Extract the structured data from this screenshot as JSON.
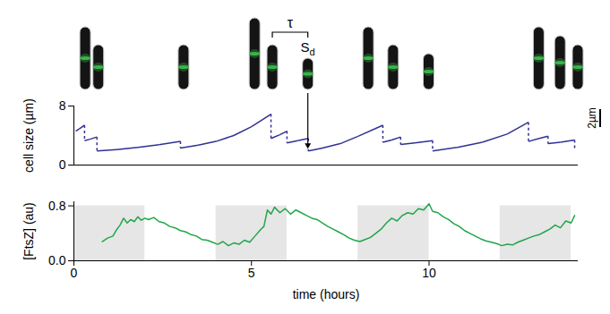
{
  "chart_data": [
    {
      "type": "line",
      "y_label": "cell size (µm)",
      "xlim": [
        0,
        14.2
      ],
      "ylim": [
        0,
        8
      ],
      "yticks": [
        0,
        8
      ],
      "tick_labels": "y",
      "color": "#2e3192",
      "x": [
        0.05,
        0.15,
        0.3,
        0.3,
        0.45,
        0.65,
        0.65,
        1.2,
        1.8,
        2.4,
        3.0,
        3.0,
        3.5,
        4.0,
        4.5,
        5.0,
        5.55,
        5.55,
        5.8,
        6.0,
        6.0,
        6.3,
        6.6,
        6.6,
        7.0,
        7.5,
        8.0,
        8.7,
        8.7,
        8.95,
        9.2,
        9.2,
        9.6,
        10.1,
        10.1,
        10.8,
        11.5,
        12.2,
        12.8,
        12.8,
        13.1,
        13.35,
        13.35,
        13.7,
        14.1,
        14.1
      ],
      "values": [
        4.6,
        4.9,
        5.4,
        3.3,
        3.5,
        3.8,
        1.9,
        2.1,
        2.4,
        2.75,
        3.2,
        2.3,
        2.7,
        3.2,
        4.0,
        5.2,
        6.9,
        3.6,
        4.1,
        4.6,
        3.0,
        3.3,
        3.6,
        1.9,
        2.3,
        2.9,
        3.9,
        5.4,
        3.1,
        3.4,
        3.8,
        2.8,
        3.0,
        3.3,
        1.9,
        2.4,
        3.1,
        4.2,
        5.8,
        3.2,
        3.6,
        3.9,
        2.9,
        3.1,
        3.4,
        2.0
      ],
      "annotations": [
        {
          "text": "τ",
          "x": [
            5.6,
            6.6
          ]
        },
        {
          "text": "S",
          "subscript": "d",
          "x": 6.6
        }
      ],
      "cell_images": {
        "x": [
          0.33,
          0.7,
          3.1,
          5.1,
          5.6,
          6.6,
          8.3,
          9.0,
          10.0,
          13.1,
          13.7,
          14.2
        ],
        "lengths": [
          7,
          5,
          5,
          8,
          5,
          3.5,
          7,
          5,
          4,
          7,
          6,
          5
        ],
        "color": "#39b54a"
      },
      "scale_bar": {
        "label": "2µm",
        "value": 2
      }
    },
    {
      "type": "line",
      "x_label": "time (hours)",
      "y_label": "[FtsZ] (au)",
      "xlim": [
        0,
        14.2
      ],
      "ylim": [
        0,
        0.86
      ],
      "xticks": [
        0,
        5,
        10
      ],
      "yticks": [
        0,
        0.8
      ],
      "color": "#1fa64a",
      "x": [
        0.8,
        0.95,
        1.1,
        1.2,
        1.3,
        1.4,
        1.5,
        1.6,
        1.7,
        1.8,
        1.9,
        2.0,
        2.1,
        2.25,
        2.4,
        2.55,
        2.7,
        2.85,
        3.0,
        3.15,
        3.3,
        3.45,
        3.6,
        3.75,
        3.9,
        4.05,
        4.2,
        4.35,
        4.5,
        4.65,
        4.8,
        4.95,
        5.1,
        5.25,
        5.35,
        5.45,
        5.55,
        5.65,
        5.8,
        5.95,
        6.1,
        6.25,
        6.4,
        6.55,
        6.7,
        6.85,
        7.0,
        7.15,
        7.3,
        7.45,
        7.6,
        7.75,
        7.9,
        8.05,
        8.2,
        8.35,
        8.5,
        8.65,
        8.8,
        8.95,
        9.1,
        9.25,
        9.4,
        9.55,
        9.7,
        9.85,
        10.0,
        10.1,
        10.25,
        10.4,
        10.55,
        10.7,
        10.85,
        11.0,
        11.15,
        11.3,
        11.45,
        11.6,
        11.75,
        11.9,
        12.05,
        12.2,
        12.35,
        12.5,
        12.65,
        12.8,
        12.95,
        13.1,
        13.25,
        13.4,
        13.55,
        13.7,
        13.85,
        14.0,
        14.1
      ],
      "values": [
        0.28,
        0.33,
        0.36,
        0.45,
        0.52,
        0.62,
        0.55,
        0.6,
        0.57,
        0.64,
        0.59,
        0.62,
        0.6,
        0.63,
        0.57,
        0.55,
        0.5,
        0.48,
        0.44,
        0.42,
        0.38,
        0.36,
        0.31,
        0.3,
        0.27,
        0.24,
        0.28,
        0.22,
        0.26,
        0.24,
        0.3,
        0.27,
        0.36,
        0.45,
        0.5,
        0.74,
        0.68,
        0.78,
        0.7,
        0.76,
        0.68,
        0.74,
        0.7,
        0.66,
        0.62,
        0.6,
        0.55,
        0.5,
        0.46,
        0.42,
        0.38,
        0.33,
        0.3,
        0.28,
        0.31,
        0.34,
        0.4,
        0.46,
        0.55,
        0.62,
        0.58,
        0.66,
        0.7,
        0.68,
        0.76,
        0.74,
        0.83,
        0.72,
        0.7,
        0.64,
        0.6,
        0.54,
        0.5,
        0.44,
        0.4,
        0.36,
        0.32,
        0.29,
        0.27,
        0.25,
        0.22,
        0.24,
        0.23,
        0.27,
        0.3,
        0.33,
        0.36,
        0.38,
        0.42,
        0.46,
        0.52,
        0.48,
        0.58,
        0.55,
        0.66
      ],
      "shaded": {
        "x": [
          [
            0,
            2
          ],
          [
            4,
            6
          ],
          [
            8,
            10
          ],
          [
            12,
            14
          ]
        ],
        "y": [
          0,
          0.8
        ],
        "color": "#e6e6e6"
      }
    }
  ]
}
